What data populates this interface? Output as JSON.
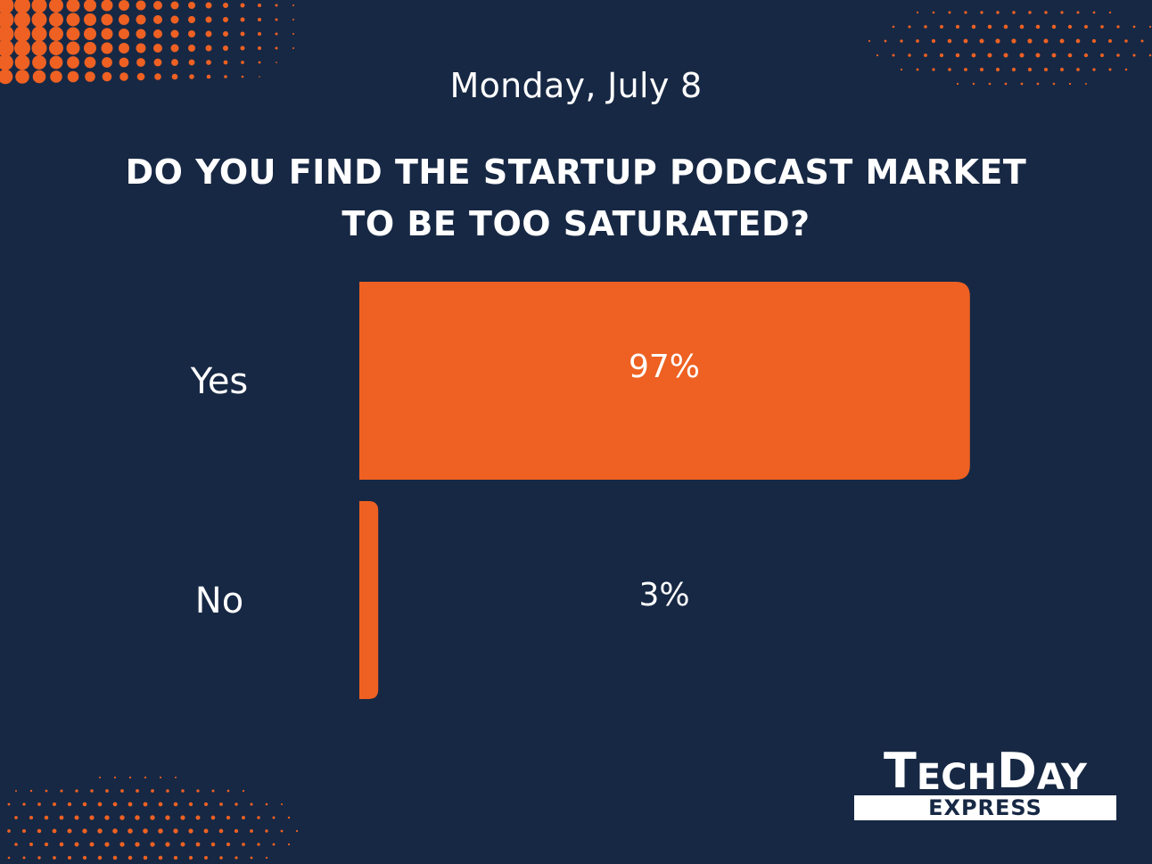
{
  "header": {
    "date": "Monday, July 8",
    "question_line1": "DO YOU FIND THE STARTUP PODCAST MARKET",
    "question_line2": "TO BE TOO SATURATED?"
  },
  "colors": {
    "background": "#172844",
    "accent": "#ee6122",
    "text": "#ffffff"
  },
  "chart_data": {
    "type": "bar",
    "orientation": "horizontal",
    "title": "DO YOU FIND THE STARTUP PODCAST MARKET TO BE TOO SATURATED?",
    "categories": [
      "Yes",
      "No"
    ],
    "values": [
      97,
      3
    ],
    "value_labels": [
      "97%",
      "3%"
    ],
    "xlim": [
      0,
      100
    ],
    "grid": false
  },
  "logo": {
    "tech_T": "T",
    "tech_rest": "ECH",
    "day_D": "D",
    "day_rest": "AY",
    "sub": "EXPRESS"
  }
}
